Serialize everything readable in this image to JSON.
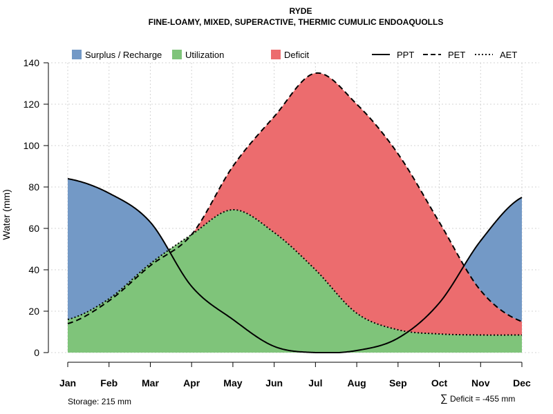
{
  "chart_data": {
    "type": "area",
    "title": "RYDE",
    "subtitle": "FINE-LOAMY, MIXED, SUPERACTIVE, THERMIC CUMULIC ENDOAQUOLLS",
    "xlabel": "",
    "ylabel": "Water (mm)",
    "ylim": [
      0,
      140
    ],
    "yticks": [
      0,
      20,
      40,
      60,
      80,
      100,
      120,
      140
    ],
    "grid": true,
    "legend_position": "top",
    "categories": [
      "Jan",
      "Feb",
      "Mar",
      "Apr",
      "May",
      "Jun",
      "Jul",
      "Aug",
      "Sep",
      "Oct",
      "Nov",
      "Dec"
    ],
    "series": [
      {
        "name": "PPT",
        "style": "solid",
        "values": [
          84,
          77,
          63,
          32,
          16,
          3,
          0,
          1,
          7,
          24,
          54,
          75
        ]
      },
      {
        "name": "PET",
        "style": "dashed",
        "values": [
          14,
          25,
          42,
          57,
          90,
          114,
          135,
          120,
          96,
          63,
          30,
          15
        ]
      },
      {
        "name": "AET",
        "style": "dotted",
        "values": [
          16,
          26,
          43,
          57,
          69,
          58,
          40,
          19,
          11,
          9,
          8.5,
          8.5
        ]
      }
    ],
    "legend": [
      {
        "label": "Surplus / Recharge",
        "color": "#7399c6"
      },
      {
        "label": "Utilization",
        "color": "#7fc47a"
      },
      {
        "label": "Deficit",
        "color": "#ec6c6e"
      },
      {
        "label": "PPT",
        "line": "solid"
      },
      {
        "label": "PET",
        "line": "dashed"
      },
      {
        "label": "AET",
        "line": "dotted"
      }
    ],
    "colors": {
      "surplus": "#7399c6",
      "utilization": "#7fc47a",
      "deficit": "#ec6c6e"
    },
    "annotations": {
      "storage": "Storage: 215 mm",
      "deficit_symbol": "∑",
      "deficit": "Deficit = -455 mm"
    }
  }
}
